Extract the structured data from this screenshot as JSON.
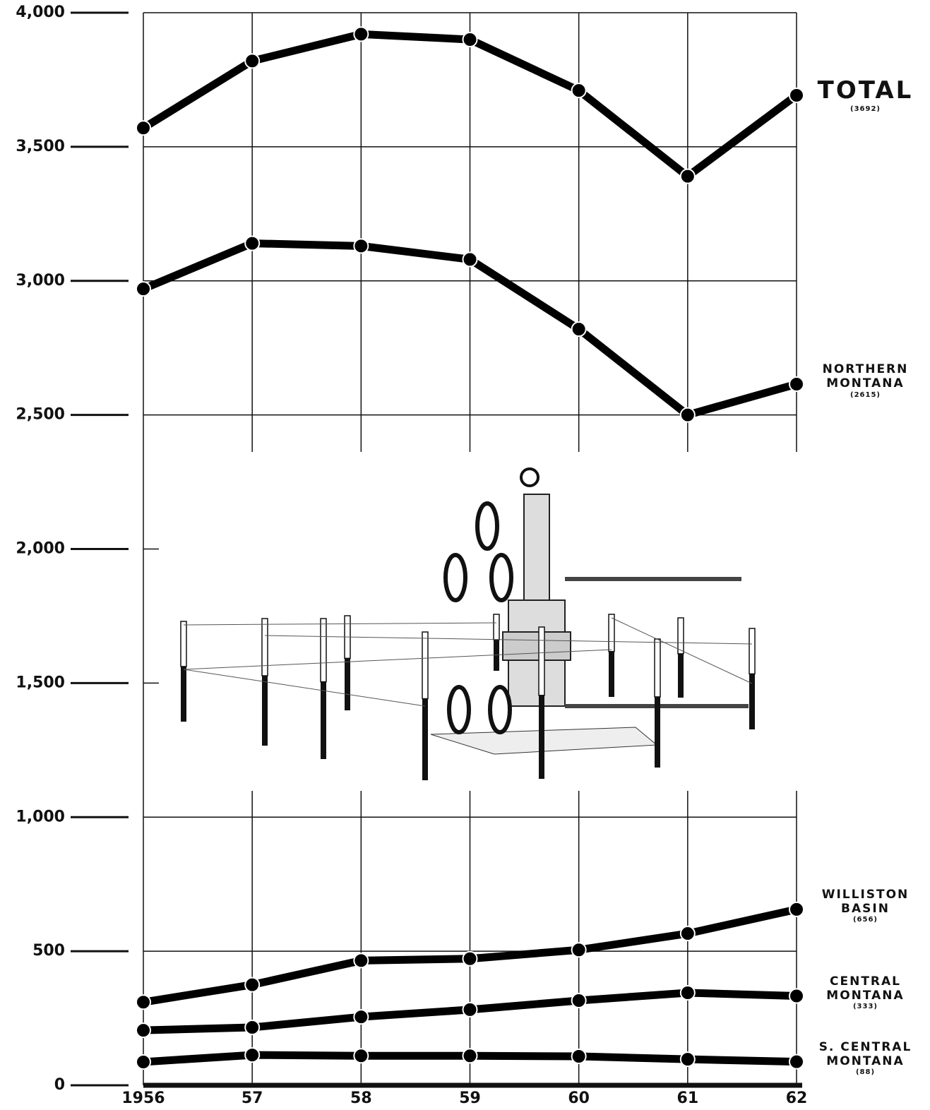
{
  "chart_data": {
    "type": "line",
    "categories": [
      "1956",
      "57",
      "58",
      "59",
      "60",
      "61",
      "62"
    ],
    "series": [
      {
        "name": "TOTAL",
        "color": "#000000",
        "values": [
          3570,
          3820,
          3920,
          3900,
          3710,
          3390,
          3692
        ],
        "value_labels": [
          null,
          null,
          null,
          null,
          null,
          null,
          "(3692)"
        ]
      },
      {
        "name": "NORTHERN MONTANA",
        "color": "#000000",
        "values": [
          2970,
          3140,
          3130,
          3080,
          2820,
          2500,
          2615
        ],
        "value_labels": [
          null,
          null,
          null,
          null,
          null,
          null,
          "(2615)"
        ]
      },
      {
        "name": "WILLISTON BASIN",
        "color": "#000000",
        "values": [
          310,
          375,
          465,
          472,
          505,
          566,
          656
        ],
        "value_labels": [
          null,
          null,
          null,
          null,
          null,
          null,
          "(656)"
        ]
      },
      {
        "name": "CENTRAL MONTANA",
        "color": "#000000",
        "values": [
          205,
          216,
          255,
          282,
          316,
          345,
          333
        ],
        "value_labels": [
          null,
          null,
          null,
          null,
          null,
          null,
          "(333)"
        ]
      },
      {
        "name": "S. CENTRAL MONTANA",
        "color": "#000000",
        "values": [
          87,
          113,
          110,
          110,
          108,
          97,
          88
        ],
        "value_labels": [
          null,
          null,
          null,
          null,
          null,
          null,
          "(88)"
        ]
      }
    ],
    "ylim": [
      0,
      4000
    ],
    "yticks": [
      0,
      {
        "value": 500,
        "label": "500"
      },
      {
        "value": 1000,
        "label": "1,000"
      },
      {
        "value": 1500,
        "label": "1,500"
      },
      {
        "value": 2000,
        "label": "2,000"
      },
      {
        "value": 2500,
        "label": "2,500"
      },
      {
        "value": 3000,
        "label": "3,000"
      },
      {
        "value": 3500,
        "label": "3,500"
      },
      {
        "value": 4000,
        "label": "4,000"
      }
    ],
    "grid": true
  }
}
